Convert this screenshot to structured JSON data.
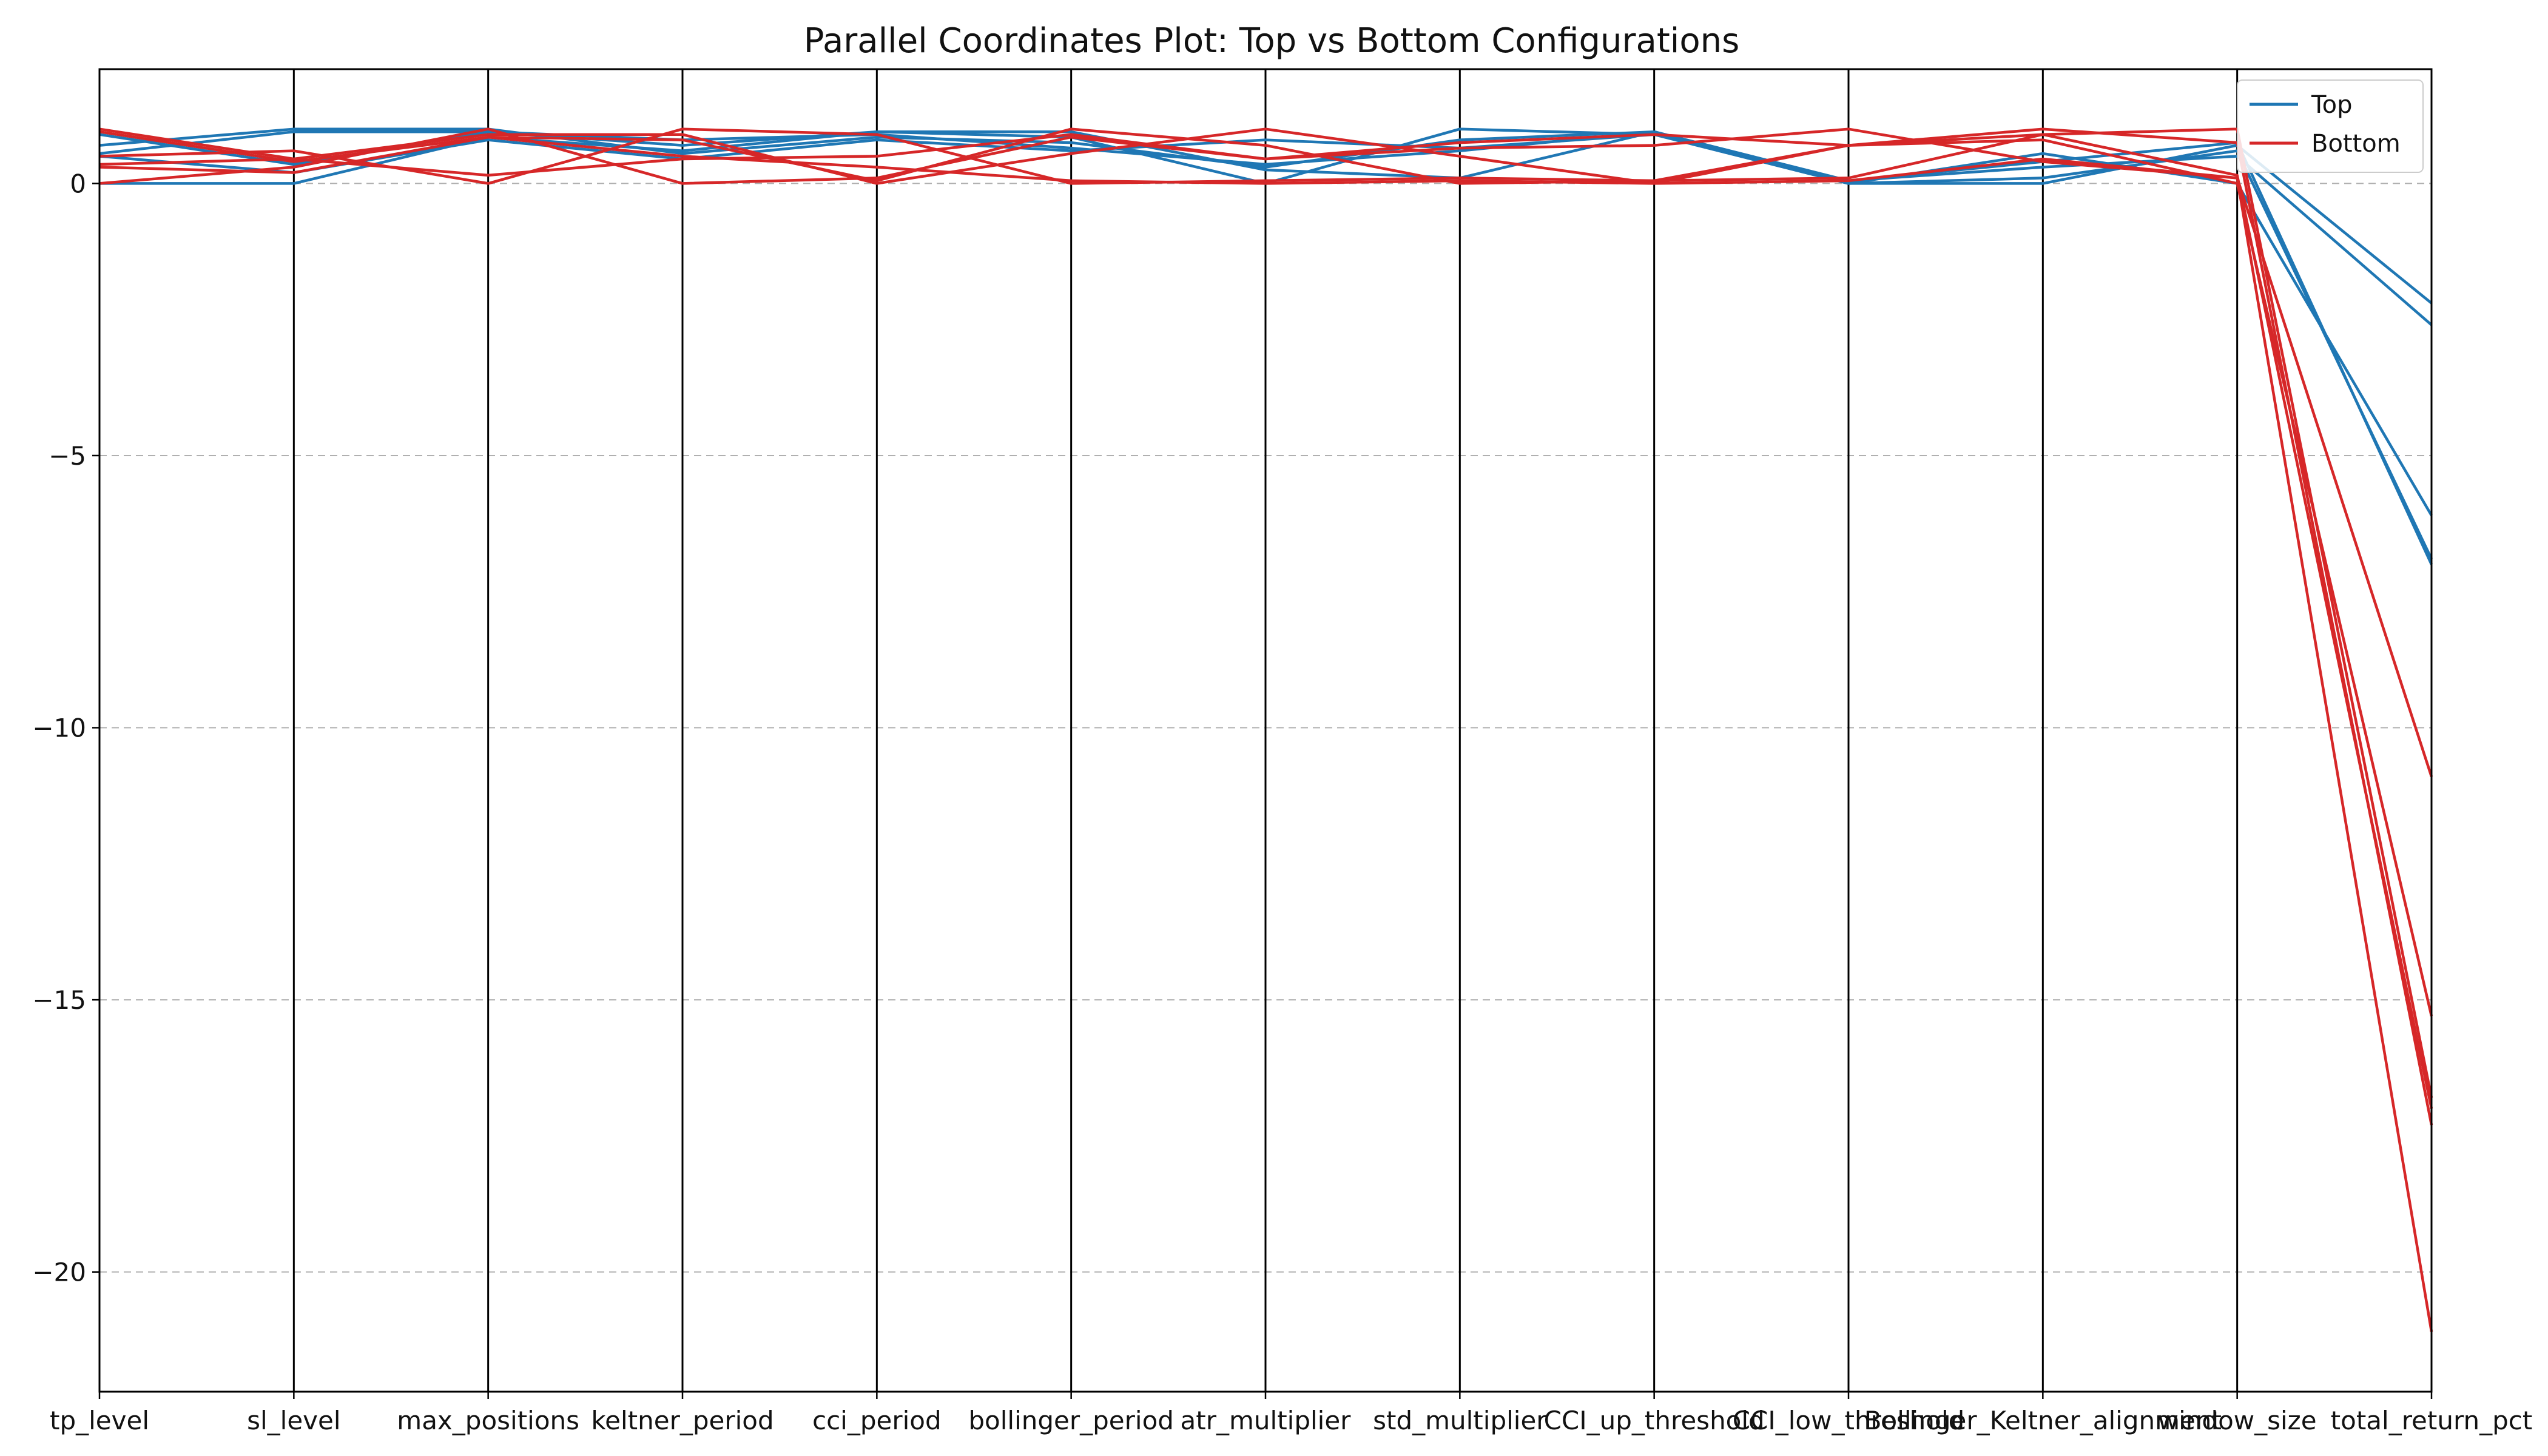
{
  "chart_data": {
    "type": "parallel_coordinates",
    "title": "Parallel Coordinates Plot: Top vs Bottom Configurations",
    "xlabel": "",
    "ylabel": "",
    "ylim": [
      -22.2,
      2.1
    ],
    "yticks": [
      0,
      -5,
      -10,
      -15,
      -20
    ],
    "ytick_labels": [
      "0",
      "−5",
      "−10",
      "−15",
      "−20"
    ],
    "grid": "y-dashed",
    "legend_position": "top-right",
    "axes": [
      "tp_level",
      "sl_level",
      "max_positions",
      "keltner_period",
      "cci_period",
      "bollinger_period",
      "atr_multiplier",
      "std_multiplier",
      "CCI_up_threshold",
      "CCI_low_threshold",
      "Bollinger_Keltner_alignment",
      "window_size",
      "total_return_pct"
    ],
    "series": [
      {
        "name": "Top",
        "color": "#1f77b4",
        "lines": [
          [
            0.55,
            0.95,
            0.95,
            0.7,
            0.95,
            0.85,
            0.0,
            1.0,
            0.9,
            0.0,
            0.0,
            0.7,
            -2.2
          ],
          [
            0.7,
            1.0,
            1.0,
            0.55,
            0.85,
            0.75,
            0.3,
            0.8,
            0.95,
            0.05,
            0.3,
            0.5,
            -2.6
          ],
          [
            0.0,
            0.0,
            0.85,
            0.6,
            0.95,
            0.95,
            0.25,
            0.1,
            0.95,
            0.0,
            0.55,
            0.0,
            -6.1
          ],
          [
            0.5,
            0.2,
            0.8,
            0.45,
            0.8,
            0.6,
            0.8,
            0.65,
            0.9,
            0.0,
            0.1,
            0.6,
            -6.9
          ],
          [
            0.9,
            0.35,
            0.95,
            0.8,
            0.9,
            0.65,
            0.35,
            0.6,
            0.95,
            0.05,
            0.4,
            0.75,
            -7.0
          ]
        ]
      },
      {
        "name": "Bottom",
        "color": "#d62728",
        "lines": [
          [
            1.0,
            0.45,
            0.15,
            0.45,
            0.5,
            0.9,
            0.45,
            0.65,
            0.7,
            1.0,
            0.4,
            0.1,
            -10.9
          ],
          [
            0.5,
            0.6,
            0.0,
            1.0,
            0.9,
            0.0,
            0.05,
            0.1,
            0.05,
            0.7,
            0.8,
            0.0,
            -15.3
          ],
          [
            0.0,
            0.3,
            1.0,
            0.0,
            0.1,
            0.85,
            0.45,
            0.75,
            0.9,
            0.7,
            0.9,
            1.0,
            -16.8
          ],
          [
            0.35,
            0.45,
            0.9,
            0.9,
            0.0,
            0.55,
            1.0,
            0.5,
            0.0,
            0.7,
            1.0,
            0.75,
            -17.3
          ],
          [
            0.3,
            0.2,
            0.85,
            0.5,
            0.3,
            0.05,
            0.0,
            0.05,
            0.0,
            0.05,
            0.45,
            0.1,
            -21.1
          ],
          [
            0.95,
            0.4,
            0.85,
            0.8,
            0.05,
            1.0,
            0.7,
            0.0,
            0.05,
            0.1,
            0.9,
            0.15,
            -17.0
          ]
        ]
      }
    ]
  }
}
